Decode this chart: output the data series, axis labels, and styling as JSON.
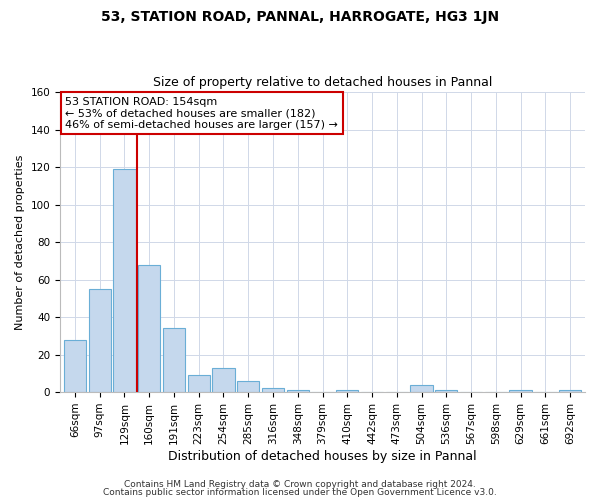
{
  "title": "53, STATION ROAD, PANNAL, HARROGATE, HG3 1JN",
  "subtitle": "Size of property relative to detached houses in Pannal",
  "xlabel": "Distribution of detached houses by size in Pannal",
  "ylabel": "Number of detached properties",
  "bar_labels": [
    "66sqm",
    "97sqm",
    "129sqm",
    "160sqm",
    "191sqm",
    "223sqm",
    "254sqm",
    "285sqm",
    "316sqm",
    "348sqm",
    "379sqm",
    "410sqm",
    "442sqm",
    "473sqm",
    "504sqm",
    "536sqm",
    "567sqm",
    "598sqm",
    "629sqm",
    "661sqm",
    "692sqm"
  ],
  "bar_values": [
    28,
    55,
    119,
    68,
    34,
    9,
    13,
    6,
    2,
    1,
    0,
    1,
    0,
    0,
    4,
    1,
    0,
    0,
    1,
    0,
    1
  ],
  "bar_color": "#c5d8ed",
  "bar_edge_color": "#6aaed6",
  "vline_color": "#cc0000",
  "ylim": [
    0,
    160
  ],
  "yticks": [
    0,
    20,
    40,
    60,
    80,
    100,
    120,
    140,
    160
  ],
  "annotation_title": "53 STATION ROAD: 154sqm",
  "annotation_line1": "← 53% of detached houses are smaller (182)",
  "annotation_line2": "46% of semi-detached houses are larger (157) →",
  "annotation_box_color": "#ffffff",
  "annotation_box_edge": "#cc0000",
  "footer_line1": "Contains HM Land Registry data © Crown copyright and database right 2024.",
  "footer_line2": "Contains public sector information licensed under the Open Government Licence v3.0.",
  "bg_color": "#ffffff",
  "grid_color": "#d0d8e8",
  "title_fontsize": 10,
  "subtitle_fontsize": 9,
  "xlabel_fontsize": 9,
  "ylabel_fontsize": 8,
  "tick_fontsize": 7.5,
  "annotation_fontsize": 8,
  "footer_fontsize": 6.5
}
